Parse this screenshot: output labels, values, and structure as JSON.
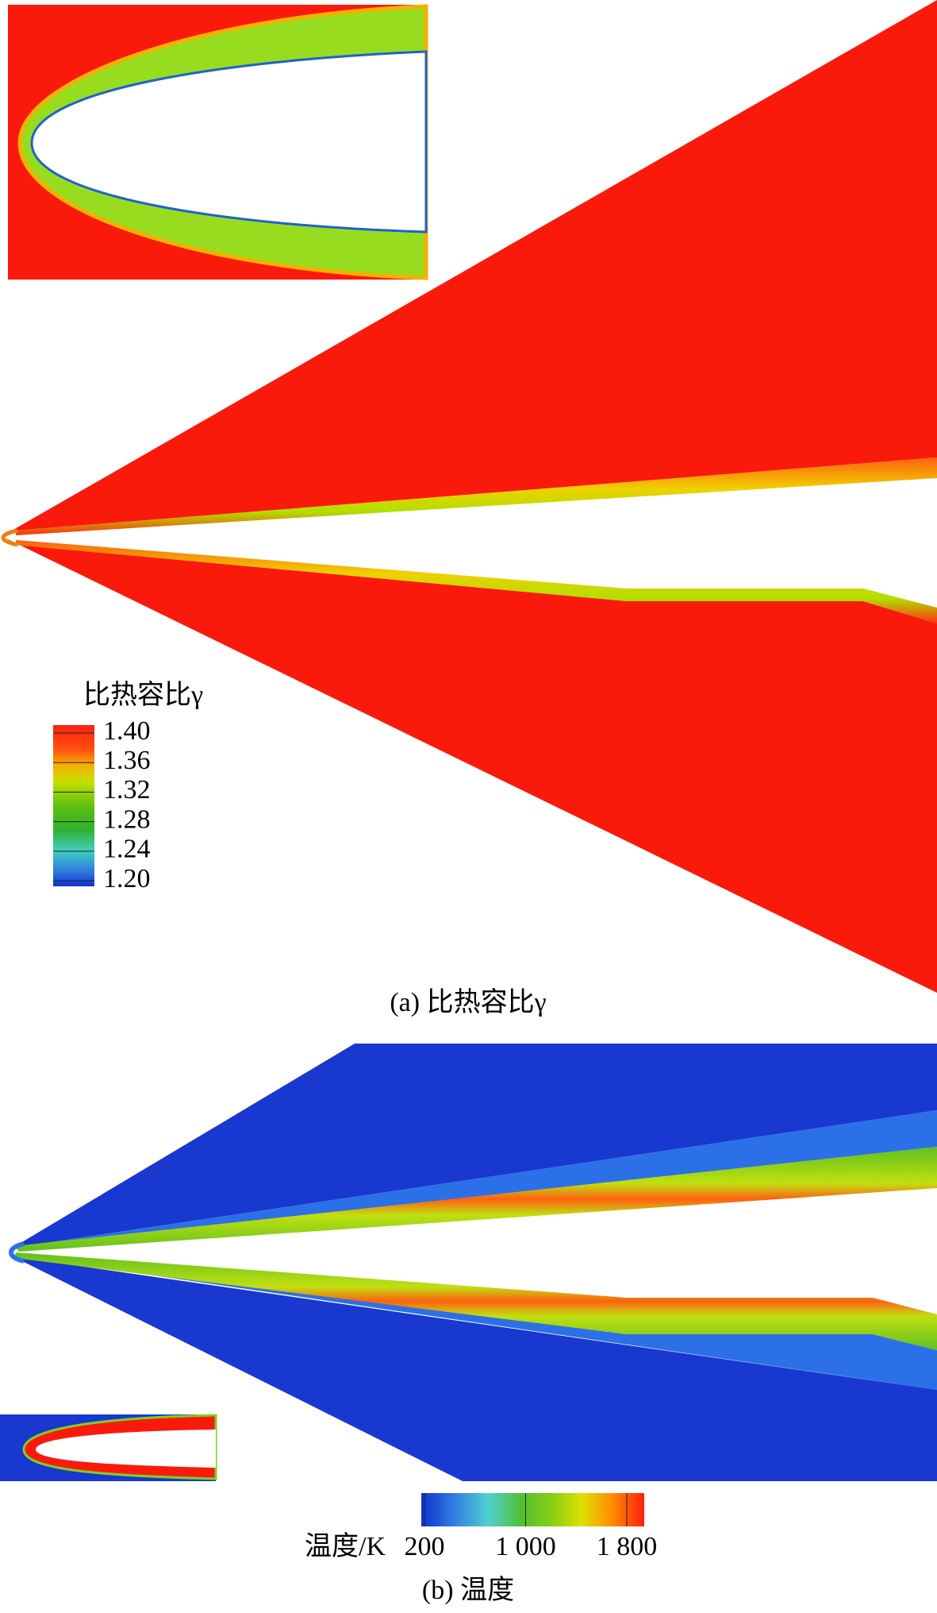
{
  "panels": [
    {
      "caption": "(a) 比热容比γ",
      "colorbar": {
        "title": "比热容比γ",
        "ticks": [
          {
            "value": 1.4,
            "label": "1.40"
          },
          1.36,
          1.32,
          1.28,
          1.24,
          {
            "value": 1.2,
            "label": "1.20"
          }
        ]
      }
    },
    {
      "caption": "(b) 温度",
      "colorbar": {
        "title": "温度/K",
        "ticks": [
          200,
          {
            "value": 1000,
            "label": "1 000"
          },
          {
            "value": 1800,
            "label": "1 800"
          }
        ]
      }
    }
  ]
}
